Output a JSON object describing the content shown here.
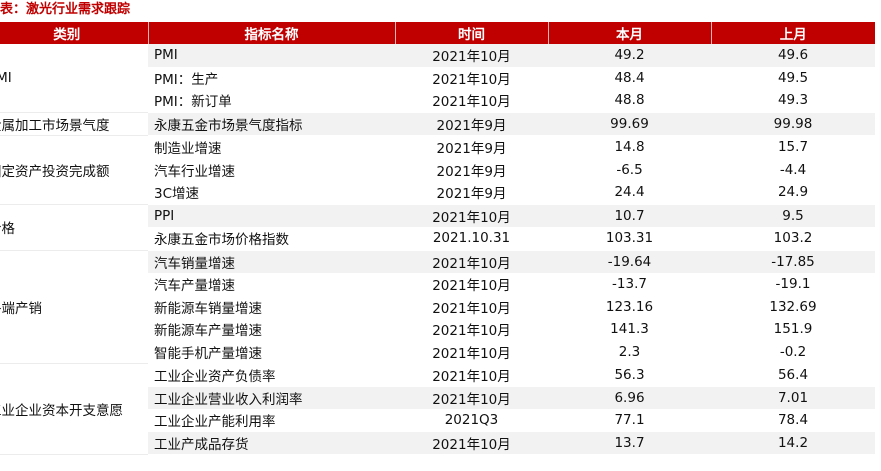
{
  "title": "表：激光行业需求跟踪",
  "headers": {
    "category": "类别",
    "indicator": "指标名称",
    "time": "时间",
    "current": "本月",
    "previous": "上月"
  },
  "categories": {
    "pmi": "PMI",
    "metal": "金属加工市场景气度",
    "fixed_asset": "固定资产投资完成额",
    "price": "价格",
    "terminal": "终端产销",
    "industrial": "工业企业资本开支意愿"
  },
  "rows": [
    {
      "indicator": "PMI",
      "time": "2021年10月",
      "current": "49.2",
      "previous": "49.6"
    },
    {
      "indicator": "PMI：生产",
      "time": "2021年10月",
      "current": "48.4",
      "previous": "49.5"
    },
    {
      "indicator": "PMI：新订单",
      "time": "2021年10月",
      "current": "48.8",
      "previous": "49.3"
    },
    {
      "indicator": "永康五金市场景气度指标",
      "time": "2021年9月",
      "current": "99.69",
      "previous": "99.98"
    },
    {
      "indicator": "制造业增速",
      "time": "2021年9月",
      "current": "14.8",
      "previous": "15.7"
    },
    {
      "indicator": "汽车行业增速",
      "time": "2021年9月",
      "current": "-6.5",
      "previous": "-4.4"
    },
    {
      "indicator": "3C增速",
      "time": "2021年9月",
      "current": "24.4",
      "previous": "24.9"
    },
    {
      "indicator": "PPI",
      "time": "2021年10月",
      "current": "10.7",
      "previous": "9.5"
    },
    {
      "indicator": "永康五金市场价格指数",
      "time": "2021.10.31",
      "current": "103.31",
      "previous": "103.2"
    },
    {
      "indicator": "汽车销量增速",
      "time": "2021年10月",
      "current": "-19.64",
      "previous": "-17.85"
    },
    {
      "indicator": "汽车产量增速",
      "time": "2021年10月",
      "current": "-13.7",
      "previous": "-19.1"
    },
    {
      "indicator": "新能源车销量增速",
      "time": "2021年10月",
      "current": "123.16",
      "previous": "132.69"
    },
    {
      "indicator": "新能源车产量增速",
      "time": "2021年10月",
      "current": "141.3",
      "previous": "151.9"
    },
    {
      "indicator": "智能手机产量增速",
      "time": "2021年10月",
      "current": "2.3",
      "previous": "-0.2"
    },
    {
      "indicator": "工业企业资产负债率",
      "time": "2021年10月",
      "current": "56.3",
      "previous": "56.4"
    },
    {
      "indicator": "工业企业营业收入利润率",
      "time": "2021年10月",
      "current": "6.96",
      "previous": "7.01"
    },
    {
      "indicator": "工业企业产能利用率",
      "time": "2021Q3",
      "current": "77.1",
      "previous": "78.4"
    },
    {
      "indicator": "工业产成品存货",
      "time": "2021年10月",
      "current": "13.7",
      "previous": "14.2"
    }
  ],
  "colors": {
    "header_bg": "#c00000",
    "title": "#c00000",
    "shade": "#f2f2f2"
  }
}
